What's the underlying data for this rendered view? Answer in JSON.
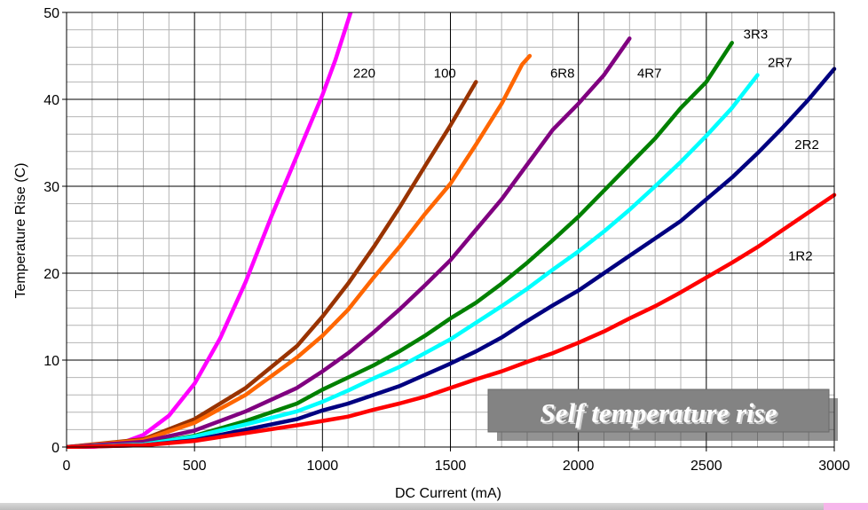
{
  "chart_data": {
    "type": "line",
    "title": "",
    "badge": "Self temperature rise",
    "xlabel": "DC Current (mA)",
    "ylabel": "Temperature Rise (C)",
    "xlim": [
      0,
      3000
    ],
    "ylim": [
      0,
      50
    ],
    "x_ticks": [
      0,
      500,
      1000,
      1500,
      2000,
      2500,
      3000
    ],
    "y_ticks": [
      0,
      10,
      20,
      30,
      40,
      50
    ],
    "grid": true,
    "series": [
      {
        "name": "220",
        "color": "#ff00ff",
        "points": [
          [
            0,
            0
          ],
          [
            100,
            0
          ],
          [
            200,
            0.3
          ],
          [
            300,
            1.4
          ],
          [
            400,
            3.6
          ],
          [
            500,
            7.3
          ],
          [
            600,
            12.5
          ],
          [
            700,
            19
          ],
          [
            800,
            26.5
          ],
          [
            900,
            33.5
          ],
          [
            1000,
            40.5
          ],
          [
            1050,
            44.5
          ],
          [
            1110,
            50
          ]
        ]
      },
      {
        "name": "100",
        "color": "#993300",
        "points": [
          [
            0,
            0
          ],
          [
            300,
            0.9
          ],
          [
            500,
            3.2
          ],
          [
            700,
            6.8
          ],
          [
            900,
            11.6
          ],
          [
            1000,
            15
          ],
          [
            1100,
            18.8
          ],
          [
            1200,
            23
          ],
          [
            1300,
            27.5
          ],
          [
            1400,
            32.3
          ],
          [
            1500,
            37
          ],
          [
            1560,
            40
          ],
          [
            1600,
            42
          ]
        ]
      },
      {
        "name": "6R8",
        "color": "#ff6600",
        "points": [
          [
            0,
            0
          ],
          [
            300,
            0.8
          ],
          [
            500,
            2.8
          ],
          [
            700,
            6
          ],
          [
            900,
            10.3
          ],
          [
            1000,
            12.8
          ],
          [
            1100,
            15.8
          ],
          [
            1200,
            19.5
          ],
          [
            1300,
            23
          ],
          [
            1400,
            26.8
          ],
          [
            1500,
            30.3
          ],
          [
            1600,
            34.8
          ],
          [
            1700,
            39.5
          ],
          [
            1780,
            44
          ],
          [
            1810,
            45
          ]
        ]
      },
      {
        "name": "4R7",
        "color": "#800080",
        "points": [
          [
            0,
            0
          ],
          [
            300,
            0.6
          ],
          [
            500,
            1.9
          ],
          [
            700,
            4.1
          ],
          [
            900,
            6.8
          ],
          [
            1000,
            8.7
          ],
          [
            1100,
            10.8
          ],
          [
            1200,
            13.2
          ],
          [
            1300,
            15.8
          ],
          [
            1400,
            18.6
          ],
          [
            1500,
            21.5
          ],
          [
            1600,
            25
          ],
          [
            1700,
            28.5
          ],
          [
            1800,
            32.5
          ],
          [
            1900,
            36.5
          ],
          [
            2000,
            39.5
          ],
          [
            2100,
            42.8
          ],
          [
            2200,
            47
          ]
        ]
      },
      {
        "name": "3R3",
        "color": "#008000",
        "points": [
          [
            0,
            0
          ],
          [
            300,
            0.3
          ],
          [
            500,
            1.3
          ],
          [
            700,
            3
          ],
          [
            900,
            5
          ],
          [
            1000,
            6.6
          ],
          [
            1100,
            8
          ],
          [
            1200,
            9.4
          ],
          [
            1300,
            11
          ],
          [
            1400,
            12.8
          ],
          [
            1500,
            14.8
          ],
          [
            1600,
            16.6
          ],
          [
            1700,
            18.8
          ],
          [
            1800,
            21.2
          ],
          [
            1900,
            23.8
          ],
          [
            2000,
            26.5
          ],
          [
            2100,
            29.5
          ],
          [
            2200,
            32.5
          ],
          [
            2300,
            35.5
          ],
          [
            2400,
            39
          ],
          [
            2500,
            42
          ],
          [
            2600,
            46.5
          ]
        ]
      },
      {
        "name": "2R7",
        "color": "#00ffff",
        "points": [
          [
            0,
            0
          ],
          [
            300,
            0.3
          ],
          [
            500,
            1.2
          ],
          [
            700,
            2.6
          ],
          [
            900,
            4.1
          ],
          [
            1000,
            5.2
          ],
          [
            1100,
            6.5
          ],
          [
            1200,
            7.9
          ],
          [
            1300,
            9.2
          ],
          [
            1400,
            10.8
          ],
          [
            1500,
            12.4
          ],
          [
            1600,
            14.3
          ],
          [
            1700,
            16.2
          ],
          [
            1800,
            18.2
          ],
          [
            1900,
            20.4
          ],
          [
            2000,
            22.5
          ],
          [
            2100,
            24.8
          ],
          [
            2200,
            27.3
          ],
          [
            2300,
            30
          ],
          [
            2400,
            32.8
          ],
          [
            2500,
            35.8
          ],
          [
            2600,
            39
          ],
          [
            2700,
            42.8
          ]
        ]
      },
      {
        "name": "2R2",
        "color": "#000080",
        "points": [
          [
            0,
            0
          ],
          [
            300,
            0.2
          ],
          [
            500,
            0.8
          ],
          [
            700,
            2
          ],
          [
            900,
            3.2
          ],
          [
            1000,
            4.2
          ],
          [
            1100,
            5
          ],
          [
            1200,
            6
          ],
          [
            1300,
            7
          ],
          [
            1400,
            8.3
          ],
          [
            1500,
            9.6
          ],
          [
            1600,
            11
          ],
          [
            1700,
            12.6
          ],
          [
            1800,
            14.5
          ],
          [
            1900,
            16.3
          ],
          [
            2000,
            18
          ],
          [
            2100,
            20
          ],
          [
            2200,
            22
          ],
          [
            2300,
            24
          ],
          [
            2400,
            26
          ],
          [
            2500,
            28.5
          ],
          [
            2600,
            31
          ],
          [
            2700,
            33.8
          ],
          [
            2800,
            36.8
          ],
          [
            2900,
            40
          ],
          [
            3000,
            43.5
          ]
        ]
      },
      {
        "name": "1R2",
        "color": "#ff0000",
        "points": [
          [
            0,
            0
          ],
          [
            300,
            0.2
          ],
          [
            500,
            0.7
          ],
          [
            700,
            1.6
          ],
          [
            900,
            2.5
          ],
          [
            1000,
            3
          ],
          [
            1100,
            3.5
          ],
          [
            1200,
            4.3
          ],
          [
            1300,
            5
          ],
          [
            1400,
            5.8
          ],
          [
            1500,
            6.8
          ],
          [
            1600,
            7.8
          ],
          [
            1700,
            8.7
          ],
          [
            1800,
            9.8
          ],
          [
            1900,
            10.8
          ],
          [
            2000,
            12
          ],
          [
            2100,
            13.3
          ],
          [
            2200,
            14.8
          ],
          [
            2300,
            16.2
          ],
          [
            2400,
            17.8
          ],
          [
            2500,
            19.5
          ],
          [
            2600,
            21.2
          ],
          [
            2700,
            23
          ],
          [
            2800,
            25
          ],
          [
            2900,
            27
          ],
          [
            3000,
            29
          ]
        ]
      }
    ],
    "label_positions": [
      {
        "name": "220",
        "x": 1120,
        "y": 42.5
      },
      {
        "name": "100",
        "x": 1435,
        "y": 42.5
      },
      {
        "name": "6R8",
        "x": 1890,
        "y": 42.5
      },
      {
        "name": "4R7",
        "x": 2230,
        "y": 42.5
      },
      {
        "name": "3R3",
        "x": 2645,
        "y": 47
      },
      {
        "name": "2R7",
        "x": 2740,
        "y": 43.7
      },
      {
        "name": "2R2",
        "x": 2845,
        "y": 34.3
      },
      {
        "name": "1R2",
        "x": 2820,
        "y": 21.5
      }
    ]
  }
}
